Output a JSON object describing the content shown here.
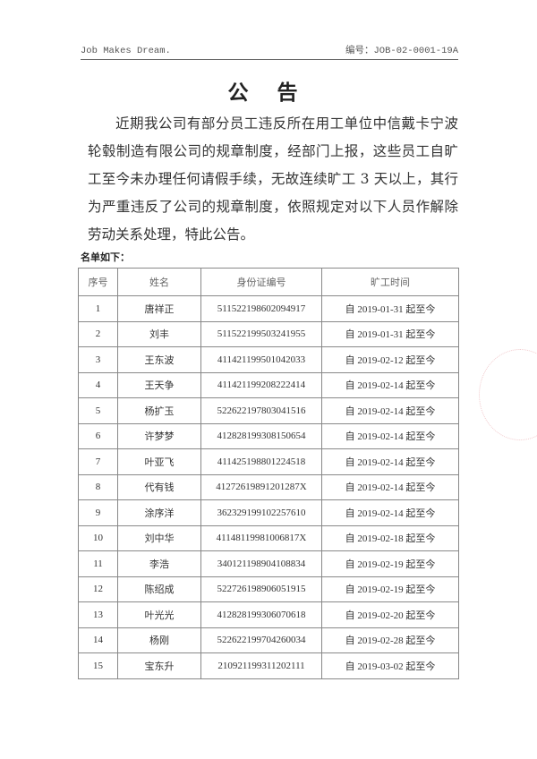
{
  "header": {
    "left": "Job Makes Dream.",
    "right": "编号：JOB-02-0001-19A"
  },
  "title": "公 告",
  "body": "近期我公司有部分员工违反所在用工单位中信戴卡宁波轮毂制造有限公司的规章制度，经部门上报，这些员工自旷工至今未办理任何请假手续，无故连续旷工 3 天以上，其行为严重违反了公司的规章制度，依照规定对以下人员作解除劳动关系处理，特此公告。",
  "list_label": "名单如下：",
  "table": {
    "columns": [
      "序号",
      "姓名",
      "身份证编号",
      "旷工时间"
    ],
    "rows": [
      [
        "1",
        "唐祥正",
        "511522198602094917",
        "自 2019-01-31 起至今"
      ],
      [
        "2",
        "刘丰",
        "511522199503241955",
        "自 2019-01-31 起至今"
      ],
      [
        "3",
        "王东波",
        "411421199501042033",
        "自 2019-02-12 起至今"
      ],
      [
        "4",
        "王天争",
        "411421199208222414",
        "自 2019-02-14 起至今"
      ],
      [
        "5",
        "杨扩玉",
        "522622197803041516",
        "自 2019-02-14 起至今"
      ],
      [
        "6",
        "许梦梦",
        "412828199308150654",
        "自 2019-02-14 起至今"
      ],
      [
        "7",
        "叶亚飞",
        "411425198801224518",
        "自 2019-02-14 起至今"
      ],
      [
        "8",
        "代有钱",
        "41272619891201287X",
        "自 2019-02-14 起至今"
      ],
      [
        "9",
        "涂序洋",
        "362329199102257610",
        "自 2019-02-14 起至今"
      ],
      [
        "10",
        "刘中华",
        "41148119981006817X",
        "自 2019-02-18 起至今"
      ],
      [
        "11",
        "李浩",
        "340121198904108834",
        "自 2019-02-19 起至今"
      ],
      [
        "12",
        "陈绍成",
        "522726198906051915",
        "自 2019-02-19 起至今"
      ],
      [
        "13",
        "叶光光",
        "412828199306070618",
        "自 2019-02-20 起至今"
      ],
      [
        "14",
        "杨刚",
        "522622199704260034",
        "自 2019-02-28 起至今"
      ],
      [
        "15",
        "宝东升",
        "210921199311202111",
        "自 2019-03-02 起至今"
      ]
    ]
  }
}
